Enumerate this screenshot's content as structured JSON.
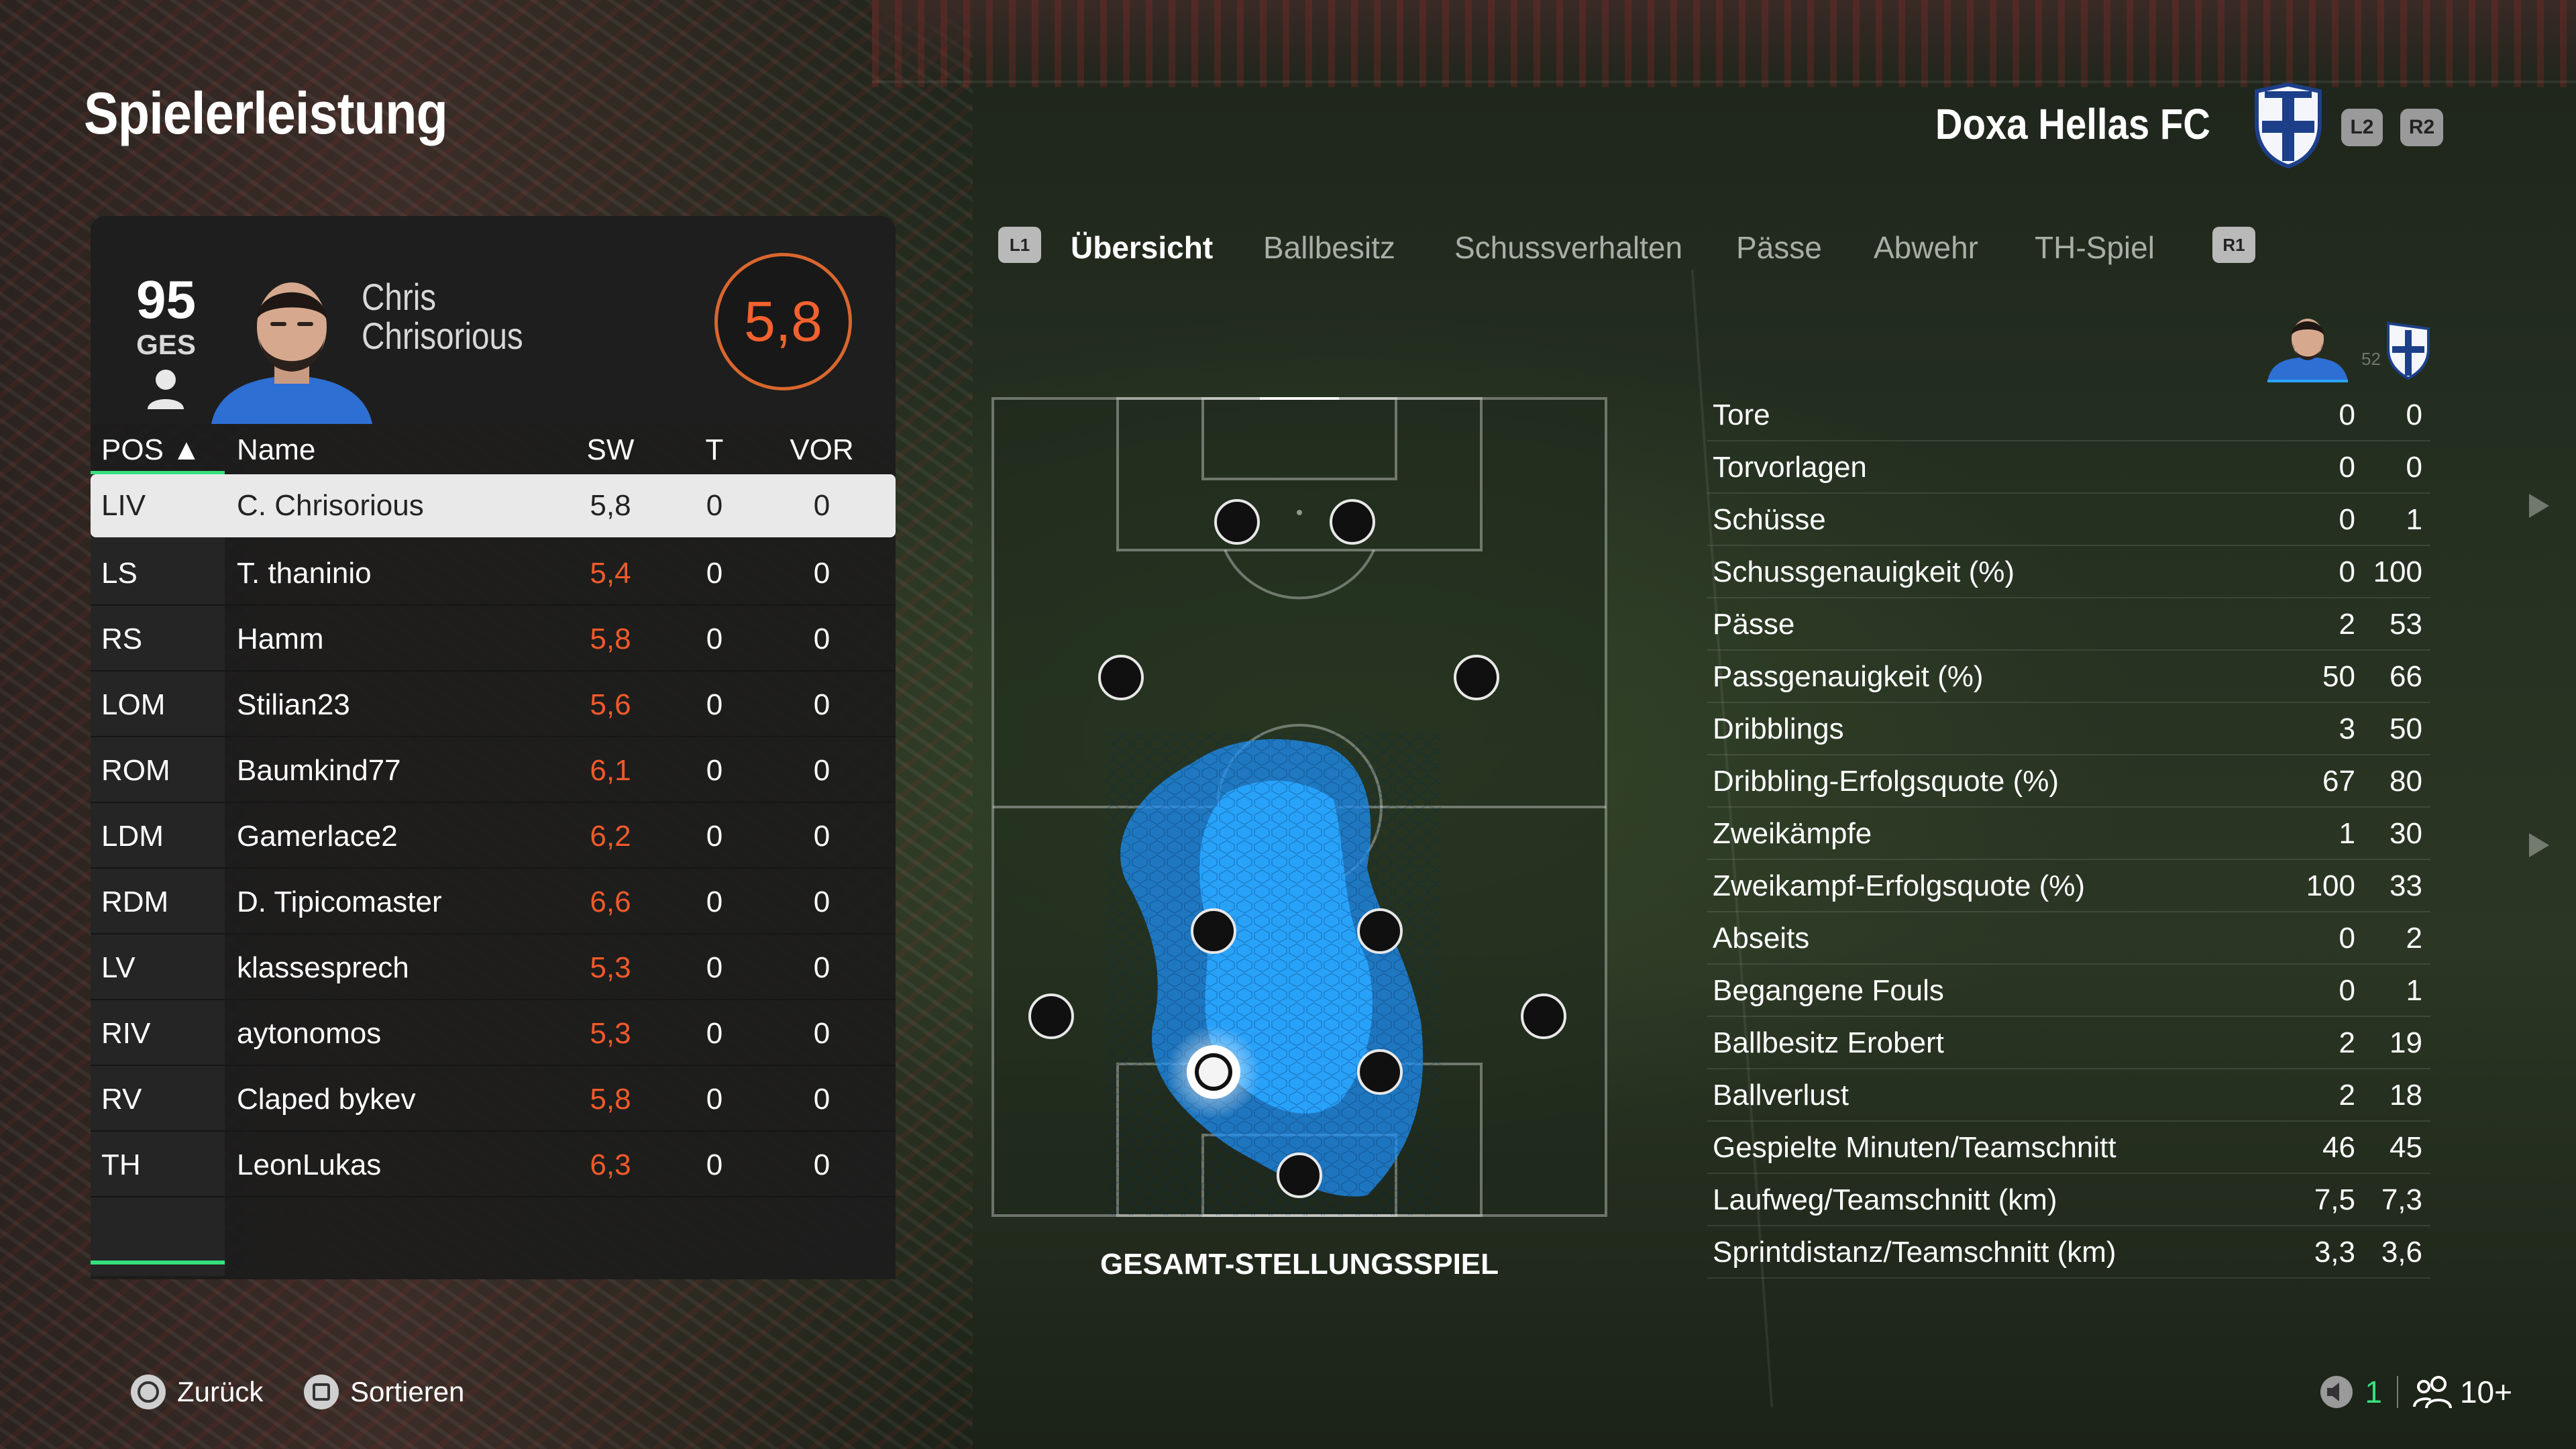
{
  "header": {
    "title": "Spielerleistung",
    "club_name": "Doxa Hellas FC",
    "l2_hint": "L2",
    "r2_hint": "R2"
  },
  "player": {
    "overall": "95",
    "overall_label": "GES",
    "first_name": "Chris",
    "last_name": "Chrisorious",
    "match_rating": "5,8"
  },
  "table": {
    "headers": {
      "pos": "POS ▲",
      "name": "Name",
      "sw": "SW",
      "t": "T",
      "vor": "VOR"
    },
    "rows": [
      {
        "pos": "LIV",
        "name": "C. Chrisorious",
        "sw": "5,8",
        "t": "0",
        "vor": "0"
      },
      {
        "pos": "LS",
        "name": "T. thaninio",
        "sw": "5,4",
        "t": "0",
        "vor": "0"
      },
      {
        "pos": "RS",
        "name": "Hamm",
        "sw": "5,8",
        "t": "0",
        "vor": "0"
      },
      {
        "pos": "LOM",
        "name": "Stilian23",
        "sw": "5,6",
        "t": "0",
        "vor": "0"
      },
      {
        "pos": "ROM",
        "name": "Baumkind77",
        "sw": "6,1",
        "t": "0",
        "vor": "0"
      },
      {
        "pos": "LDM",
        "name": "Gamerlace2",
        "sw": "6,2",
        "t": "0",
        "vor": "0"
      },
      {
        "pos": "RDM",
        "name": "D. Tipicomaster",
        "sw": "6,6",
        "t": "0",
        "vor": "0"
      },
      {
        "pos": "LV",
        "name": "klassesprech",
        "sw": "5,3",
        "t": "0",
        "vor": "0"
      },
      {
        "pos": "RIV",
        "name": "aytonomos",
        "sw": "5,3",
        "t": "0",
        "vor": "0"
      },
      {
        "pos": "RV",
        "name": "Claped bykev",
        "sw": "5,8",
        "t": "0",
        "vor": "0"
      },
      {
        "pos": "TH",
        "name": "LeonLukas",
        "sw": "6,3",
        "t": "0",
        "vor": "0"
      }
    ]
  },
  "tabs": {
    "l1_hint": "L1",
    "r1_hint": "R1",
    "items": [
      "Übersicht",
      "Ballbesitz",
      "Schussverhalten",
      "Pässe",
      "Abwehr",
      "TH-Spiel"
    ],
    "active_index": 0
  },
  "pitch": {
    "caption": "GESAMT-STELLUNGSSPIEL"
  },
  "compare": {
    "minute_label": "52"
  },
  "stats": [
    {
      "label": "Tore",
      "player": "0",
      "team": "0"
    },
    {
      "label": "Torvorlagen",
      "player": "0",
      "team": "0"
    },
    {
      "label": "Schüsse",
      "player": "0",
      "team": "1"
    },
    {
      "label": "Schussgenauigkeit (%)",
      "player": "0",
      "team": "100"
    },
    {
      "label": "Pässe",
      "player": "2",
      "team": "53"
    },
    {
      "label": "Passgenauigkeit (%)",
      "player": "50",
      "team": "66"
    },
    {
      "label": "Dribblings",
      "player": "3",
      "team": "50"
    },
    {
      "label": "Dribbling-Erfolgsquote (%)",
      "player": "67",
      "team": "80"
    },
    {
      "label": "Zweikämpfe",
      "player": "1",
      "team": "30"
    },
    {
      "label": "Zweikampf-Erfolgsquote (%)",
      "player": "100",
      "team": "33"
    },
    {
      "label": "Abseits",
      "player": "0",
      "team": "2"
    },
    {
      "label": "Begangene Fouls",
      "player": "0",
      "team": "1"
    },
    {
      "label": "Ballbesitz Erobert",
      "player": "2",
      "team": "19"
    },
    {
      "label": "Ballverlust",
      "player": "2",
      "team": "18"
    },
    {
      "label": "Gespielte Minuten/Teamschnitt",
      "player": "46",
      "team": "45"
    },
    {
      "label": "Laufweg/Teamschnitt (km)",
      "player": "7,5",
      "team": "7,3"
    },
    {
      "label": "Sprintdistanz/Teamschnitt (km)",
      "player": "3,3",
      "team": "3,6"
    }
  ],
  "footer": {
    "back_label": "Zurück",
    "sort_label": "Sortieren",
    "voice_count": "1",
    "players_count": "10+"
  },
  "colors": {
    "accent_green": "#35e07c",
    "rating_orange": "#f05a2a",
    "heatmap_blue": "#1e9bff"
  }
}
